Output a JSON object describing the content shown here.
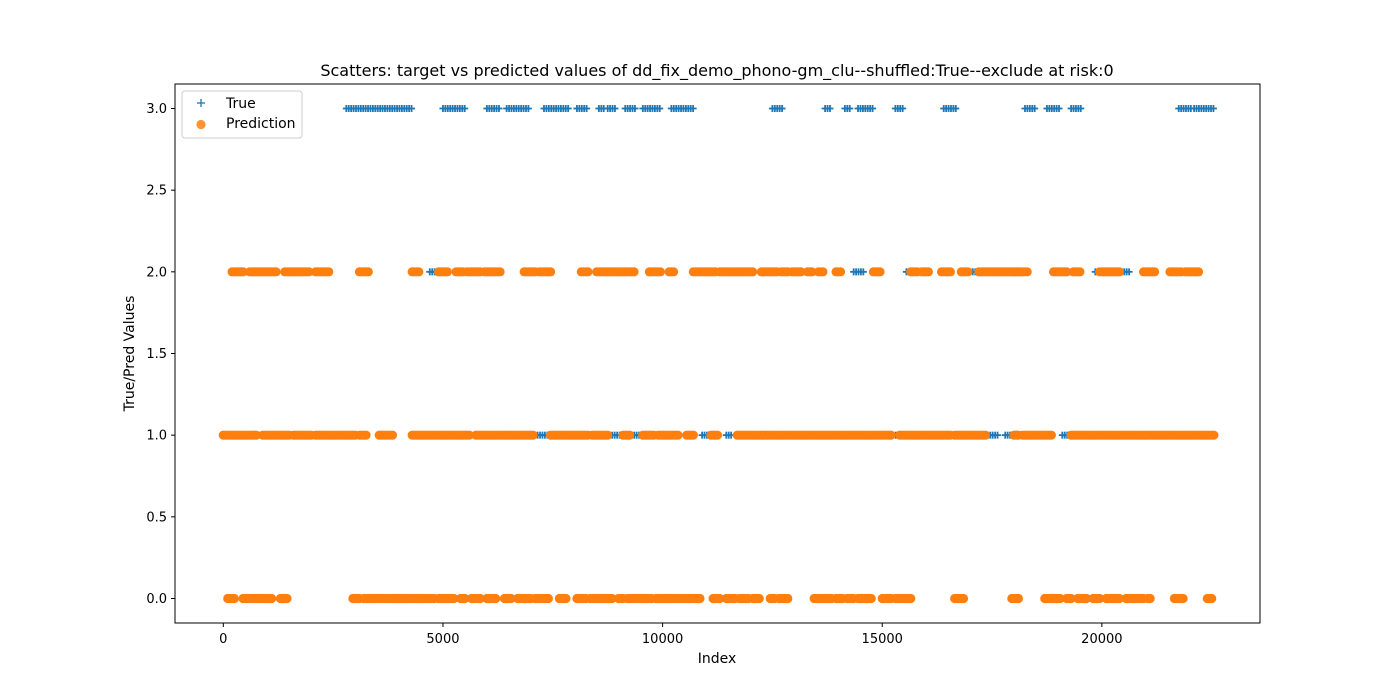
{
  "chart_data": {
    "type": "scatter",
    "title": "Scatters: target vs predicted values of dd_fix_demo_phono-gm_clu--shuffled:True--exclude at risk:0",
    "xlabel": "Index",
    "ylabel": "True/Pred Values",
    "xlim": [
      -1100,
      23600
    ],
    "ylim": [
      -0.15,
      3.15
    ],
    "x_ticks": [
      0,
      5000,
      10000,
      15000,
      20000
    ],
    "x_tick_labels": [
      "0",
      "5000",
      "10000",
      "15000",
      "20000"
    ],
    "y_ticks": [
      0.0,
      0.5,
      1.0,
      1.5,
      2.0,
      2.5,
      3.0
    ],
    "y_tick_labels": [
      "0.0",
      "0.5",
      "1.0",
      "1.5",
      "2.0",
      "2.5",
      "3.0"
    ],
    "grid": false,
    "legend_position": "top-left",
    "colors": {
      "true": "#1f77b4",
      "prediction": "#ff7f0e"
    },
    "series": [
      {
        "name": "True",
        "marker": "plus",
        "y_levels": [
          {
            "y": 3.0,
            "x_ranges": [
              [
                2800,
                4300
              ],
              [
                5000,
                5500
              ],
              [
                6000,
                6300
              ],
              [
                6450,
                6950
              ],
              [
                7300,
                7900
              ],
              [
                8050,
                8300
              ],
              [
                8550,
                8700
              ],
              [
                8750,
                8950
              ],
              [
                9150,
                9400
              ],
              [
                9550,
                9950
              ],
              [
                10200,
                10700
              ],
              [
                12500,
                12750
              ],
              [
                13700,
                13850
              ],
              [
                14150,
                14300
              ],
              [
                14450,
                14800
              ],
              [
                15300,
                15500
              ],
              [
                16400,
                16700
              ],
              [
                18250,
                18500
              ],
              [
                18750,
                19050
              ],
              [
                19300,
                19550
              ],
              [
                21750,
                22050
              ],
              [
                22100,
                22550
              ]
            ]
          },
          {
            "y": 2.0,
            "x_ranges": [
              [
                4700,
                4900
              ],
              [
                5700,
                5800
              ],
              [
                14350,
                14600
              ],
              [
                15550,
                15650
              ],
              [
                16950,
                17300
              ],
              [
                19850,
                20650
              ]
            ]
          },
          {
            "y": 1.0,
            "x_ranges": [
              [
                750,
                900
              ],
              [
                2000,
                2100
              ],
              [
                7100,
                7400
              ],
              [
                8800,
                9100
              ],
              [
                9300,
                9550
              ],
              [
                10900,
                11100
              ],
              [
                11450,
                11600
              ],
              [
                15200,
                15400
              ],
              [
                17350,
                17650
              ],
              [
                17800,
                18150
              ],
              [
                19100,
                19300
              ]
            ]
          }
        ]
      },
      {
        "name": "Prediction",
        "marker": "circle",
        "y_levels": [
          {
            "y": 2.0,
            "x_ranges": [
              [
                200,
                450
              ],
              [
                600,
                1200
              ],
              [
                1400,
                1950
              ],
              [
                2100,
                2400
              ],
              [
                3100,
                3300
              ],
              [
                4300,
                4450
              ],
              [
                4900,
                5100
              ],
              [
                5300,
                5450
              ],
              [
                5550,
                5850
              ],
              [
                5950,
                6300
              ],
              [
                6850,
                7100
              ],
              [
                7200,
                7450
              ],
              [
                8150,
                8300
              ],
              [
                8500,
                9350
              ],
              [
                9700,
                9950
              ],
              [
                10150,
                10250
              ],
              [
                10700,
                11200
              ],
              [
                11300,
                11750
              ],
              [
                11800,
                12050
              ],
              [
                12250,
                12600
              ],
              [
                12700,
                12850
              ],
              [
                12950,
                13150
              ],
              [
                13300,
                13400
              ],
              [
                13550,
                13650
              ],
              [
                13950,
                14050
              ],
              [
                14800,
                14950
              ],
              [
                15650,
                15800
              ],
              [
                15900,
                16050
              ],
              [
                16350,
                16550
              ],
              [
                16800,
                16950
              ],
              [
                17200,
                18300
              ],
              [
                18900,
                19200
              ],
              [
                19350,
                19500
              ],
              [
                19950,
                20400
              ],
              [
                20950,
                21200
              ],
              [
                21550,
                21800
              ],
              [
                21900,
                22050
              ],
              [
                22100,
                22200
              ]
            ]
          },
          {
            "y": 1.0,
            "x_ranges": [
              [
                0,
                750
              ],
              [
                900,
                1500
              ],
              [
                1600,
                2000
              ],
              [
                2100,
                3000
              ],
              [
                3100,
                3250
              ],
              [
                3550,
                3650
              ],
              [
                3700,
                3850
              ],
              [
                4300,
                5200
              ],
              [
                5250,
                5600
              ],
              [
                5750,
                7050
              ],
              [
                7450,
                8300
              ],
              [
                8400,
                8750
              ],
              [
                9100,
                9250
              ],
              [
                9550,
                9800
              ],
              [
                9900,
                10350
              ],
              [
                10550,
                10700
              ],
              [
                11100,
                11250
              ],
              [
                11700,
                12200
              ],
              [
                12250,
                13400
              ],
              [
                13450,
                15000
              ],
              [
                15050,
                15200
              ],
              [
                15400,
                15650
              ],
              [
                15700,
                16550
              ],
              [
                16650,
                16800
              ],
              [
                16850,
                17350
              ],
              [
                18000,
                18100
              ],
              [
                18200,
                18850
              ],
              [
                19300,
                21100
              ],
              [
                21150,
                21750
              ],
              [
                21800,
                22550
              ]
            ]
          },
          {
            "y": 0.0,
            "x_ranges": [
              [
                100,
                250
              ],
              [
                450,
                750
              ],
              [
                800,
                950
              ],
              [
                1000,
                1100
              ],
              [
                1300,
                1450
              ],
              [
                2950,
                3100
              ],
              [
                3200,
                4800
              ],
              [
                4900,
                5250
              ],
              [
                5400,
                5500
              ],
              [
                5650,
                5850
              ],
              [
                6000,
                6200
              ],
              [
                6400,
                6550
              ],
              [
                6700,
                7000
              ],
              [
                7100,
                7400
              ],
              [
                7650,
                7800
              ],
              [
                8050,
                8250
              ],
              [
                8350,
                8850
              ],
              [
                9000,
                9100
              ],
              [
                9200,
                9750
              ],
              [
                9850,
                10850
              ],
              [
                11150,
                11300
              ],
              [
                11450,
                11650
              ],
              [
                11750,
                11950
              ],
              [
                12050,
                12200
              ],
              [
                12450,
                12550
              ],
              [
                12650,
                12850
              ],
              [
                13450,
                13850
              ],
              [
                13950,
                14100
              ],
              [
                14200,
                14350
              ],
              [
                14450,
                14750
              ],
              [
                15000,
                15200
              ],
              [
                15300,
                15650
              ],
              [
                16650,
                16850
              ],
              [
                17950,
                18100
              ],
              [
                18700,
                19050
              ],
              [
                19200,
                19300
              ],
              [
                19450,
                19650
              ],
              [
                19800,
                19950
              ],
              [
                20100,
                20400
              ],
              [
                20550,
                20950
              ],
              [
                21050,
                21100
              ],
              [
                21650,
                21850
              ],
              [
                22400,
                22500
              ]
            ]
          }
        ]
      }
    ]
  }
}
